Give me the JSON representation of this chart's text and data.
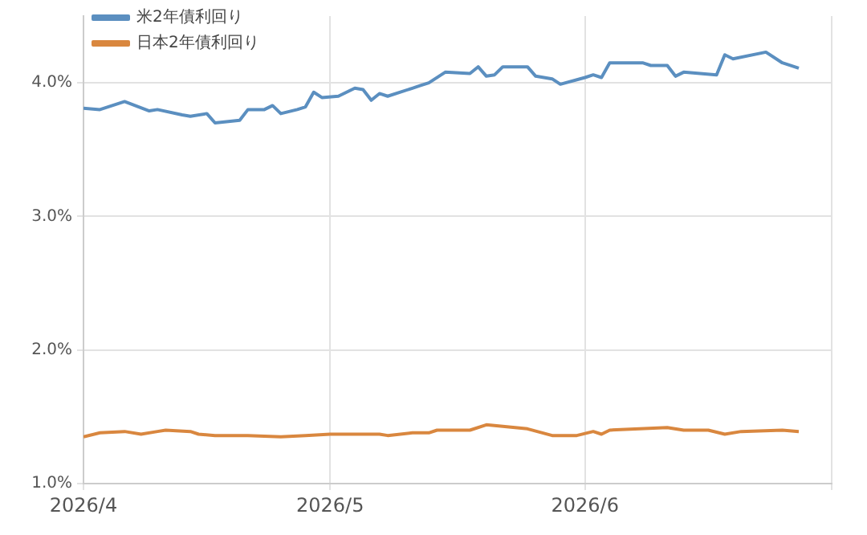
{
  "chart_data": {
    "type": "line",
    "xlim": [
      "2026-04-01",
      "2026-07-01"
    ],
    "xticks": [
      {
        "value": "2026-04-01",
        "label": "2026/4"
      },
      {
        "value": "2026-05-01",
        "label": "2026/5"
      },
      {
        "value": "2026-06-01",
        "label": "2026/6"
      },
      {
        "value": "2026-07-01",
        "label": null
      }
    ],
    "ylim": [
      1.0,
      4.5
    ],
    "yticks": [
      {
        "value": 1.0,
        "label": "1.0%"
      },
      {
        "value": 2.0,
        "label": "2.0%"
      },
      {
        "value": 3.0,
        "label": "3.0%"
      },
      {
        "value": 4.0,
        "label": "4.0%"
      }
    ],
    "grid": true,
    "legend": "top left",
    "marker": "none",
    "line_style": "solid",
    "series": [
      {
        "name": "米2年債利回り",
        "color": "#5b8fc0",
        "x": [
          "2026-04-01",
          "2026-04-03",
          "2026-04-06",
          "2026-04-09",
          "2026-04-10",
          "2026-04-13",
          "2026-04-14",
          "2026-04-16",
          "2026-04-17",
          "2026-04-20",
          "2026-04-21",
          "2026-04-23",
          "2026-04-24",
          "2026-04-25",
          "2026-04-27",
          "2026-04-28",
          "2026-04-29",
          "2026-04-30",
          "2026-05-02",
          "2026-05-04",
          "2026-05-05",
          "2026-05-06",
          "2026-05-07",
          "2026-05-08",
          "2026-05-11",
          "2026-05-12",
          "2026-05-13",
          "2026-05-15",
          "2026-05-18",
          "2026-05-19",
          "2026-05-20",
          "2026-05-21",
          "2026-05-22",
          "2026-05-25",
          "2026-05-26",
          "2026-05-28",
          "2026-05-29",
          "2026-06-01",
          "2026-06-02",
          "2026-06-03",
          "2026-06-04",
          "2026-06-08",
          "2026-06-09",
          "2026-06-11",
          "2026-06-12",
          "2026-06-13",
          "2026-06-17",
          "2026-06-18",
          "2026-06-19",
          "2026-06-23",
          "2026-06-25",
          "2026-06-27"
        ],
        "values": [
          3.81,
          3.8,
          3.86,
          3.79,
          3.8,
          3.76,
          3.75,
          3.77,
          3.7,
          3.72,
          3.8,
          3.8,
          3.83,
          3.77,
          3.8,
          3.82,
          3.93,
          3.89,
          3.9,
          3.96,
          3.95,
          3.87,
          3.92,
          3.9,
          3.96,
          3.98,
          4.0,
          4.08,
          4.07,
          4.12,
          4.05,
          4.06,
          4.12,
          4.12,
          4.05,
          4.03,
          3.99,
          4.04,
          4.06,
          4.04,
          4.15,
          4.15,
          4.13,
          4.13,
          4.05,
          4.08,
          4.06,
          4.21,
          4.18,
          4.23,
          4.15,
          4.11
        ]
      },
      {
        "name": "日本2年債利回り",
        "color": "#d9873f",
        "x": [
          "2026-04-01",
          "2026-04-03",
          "2026-04-06",
          "2026-04-08",
          "2026-04-10",
          "2026-04-11",
          "2026-04-14",
          "2026-04-15",
          "2026-04-17",
          "2026-04-21",
          "2026-04-25",
          "2026-04-28",
          "2026-05-01",
          "2026-05-07",
          "2026-05-08",
          "2026-05-11",
          "2026-05-13",
          "2026-05-14",
          "2026-05-18",
          "2026-05-20",
          "2026-05-25",
          "2026-05-28",
          "2026-05-31",
          "2026-06-02",
          "2026-06-03",
          "2026-06-04",
          "2026-06-11",
          "2026-06-13",
          "2026-06-16",
          "2026-06-18",
          "2026-06-20",
          "2026-06-25",
          "2026-06-27"
        ],
        "values": [
          1.35,
          1.38,
          1.39,
          1.37,
          1.39,
          1.4,
          1.39,
          1.37,
          1.36,
          1.36,
          1.35,
          1.36,
          1.37,
          1.37,
          1.36,
          1.38,
          1.38,
          1.4,
          1.4,
          1.44,
          1.41,
          1.36,
          1.36,
          1.39,
          1.37,
          1.4,
          1.42,
          1.4,
          1.4,
          1.37,
          1.39,
          1.4,
          1.39
        ]
      }
    ]
  }
}
